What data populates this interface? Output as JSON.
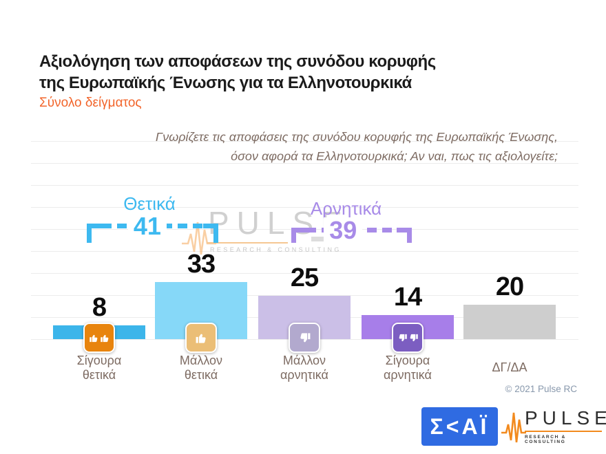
{
  "header": {
    "title_line1": "Αξιολόγηση των αποφάσεων της συνόδου κορυφής",
    "title_line2": "της Ευρωπαϊκής Ένωσης για τα Ελληνοτουρκικά",
    "subtitle": "Σύνολο δείγματος"
  },
  "question": {
    "line1": "Γνωρίζετε τις αποφάσεις της συνόδου κορυφής της Ευρωπαϊκής Ένωσης,",
    "line2": "όσον αφορά τα Ελληνοτουρκικά; Αν ναι, πως τις αξιολογείτε;"
  },
  "chart_data": {
    "type": "bar",
    "title": "Αξιολόγηση των αποφάσεων της συνόδου κορυφής της Ευρωπαϊκής Ένωσης για τα Ελληνοτουρκικά",
    "subtitle": "Σύνολο δείγματος",
    "categories": [
      "Σίγουρα θετικά",
      "Μάλλον θετικά",
      "Μάλλον αρνητικά",
      "Σίγουρα αρνητικά",
      "ΔΓ/ΔΑ"
    ],
    "values": [
      8,
      33,
      25,
      14,
      20
    ],
    "bar_colors": [
      "#3CB5EA",
      "#86D8F8",
      "#CBBFE7",
      "#A77EE9",
      "#CECECE"
    ],
    "groups": [
      {
        "label": "Θετικά",
        "value": 41,
        "color": "#3DB9F0",
        "spans": [
          "Σίγουρα θετικά",
          "Μάλλον θετικά"
        ]
      },
      {
        "label": "Αρνητικά",
        "value": 39,
        "color": "#A88BE8",
        "spans": [
          "Μάλλον αρνητικά",
          "Σίγουρα αρνητικά"
        ]
      }
    ],
    "xlabel": "",
    "ylabel": "",
    "ylim": [
      0,
      40
    ],
    "grid": true,
    "legend": false
  },
  "bars": [
    {
      "value": 8,
      "label_line1": "Σίγουρα",
      "label_line2": "θετικά",
      "icon": "double-thumbs-up-icon",
      "icon_color": "#E8840D"
    },
    {
      "value": 33,
      "label_line1": "Μάλλον",
      "label_line2": "θετικά",
      "icon": "thumb-up-icon",
      "icon_color": "#EBBE76"
    },
    {
      "value": 25,
      "label_line1": "Μάλλον",
      "label_line2": "αρνητικά",
      "icon": "thumb-down-icon",
      "icon_color": "#B2A9CE"
    },
    {
      "value": 14,
      "label_line1": "Σίγουρα",
      "label_line2": "αρνητικά",
      "icon": "double-thumbs-down-icon",
      "icon_color": "#7C5EC1"
    },
    {
      "value": 20,
      "label_line1": "ΔΓ/ΔΑ",
      "label_line2": "",
      "icon": null,
      "icon_color": null
    }
  ],
  "watermark": {
    "name": "PULSE",
    "tagline": "RESEARCH & CONSULTING"
  },
  "footer": {
    "copyright": "© 2021 Pulse RC",
    "skai_text": "Σ<ΑΪ",
    "pulse": {
      "name": "PULSE",
      "tagline": "RESEARCH & CONSULTING"
    }
  },
  "colors": {
    "title": "#1B1B1B",
    "subtitle_orange": "#F2652B",
    "question_text": "#7D6B62",
    "positive_accent": "#3DB9F0",
    "negative_accent": "#A88BE8",
    "skai_blue": "#2F6BE2",
    "pulse_orange": "#F28A1E"
  }
}
